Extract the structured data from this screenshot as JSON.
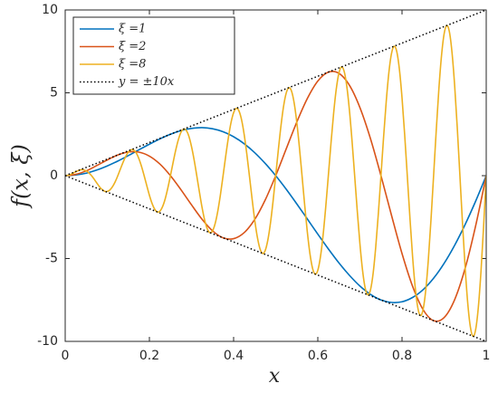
{
  "chart_data": {
    "type": "line",
    "xlabel": "x",
    "ylabel": "f(x, ξ)",
    "xlim": [
      0,
      1
    ],
    "ylim": [
      -10,
      10
    ],
    "xticks": [
      0,
      0.2,
      0.4,
      0.6,
      0.8,
      1
    ],
    "yticks": [
      -10,
      -5,
      0,
      5,
      10
    ],
    "legend": "upper left",
    "series": [
      {
        "name": "ξ =1",
        "color": "#0072bd",
        "style": "solid",
        "x": [
          0,
          0.025,
          0.05,
          0.075,
          0.1,
          0.125,
          0.15,
          0.175,
          0.2,
          0.225,
          0.25,
          0.275,
          0.3,
          0.325,
          0.35,
          0.375,
          0.4,
          0.425,
          0.45,
          0.475,
          0.5,
          0.525,
          0.55,
          0.575,
          0.6,
          0.625,
          0.65,
          0.675,
          0.7,
          0.725,
          0.75,
          0.775,
          0.8,
          0.825,
          0.85,
          0.875,
          0.9,
          0.925,
          0.95,
          0.975,
          1
        ],
        "values": [
          0,
          0.04,
          0.15,
          0.34,
          0.59,
          0.88,
          1.21,
          1.56,
          1.9,
          2.22,
          2.5,
          2.72,
          2.85,
          2.9,
          2.83,
          2.65,
          2.35,
          1.93,
          1.39,
          0.74,
          0,
          -0.82,
          -1.7,
          -2.61,
          -3.53,
          -4.42,
          -5.26,
          -6.01,
          -6.66,
          -7.16,
          -7.5,
          -7.65,
          -7.61,
          -7.35,
          -6.88,
          -6.19,
          -5.29,
          -4.2,
          -2.94,
          -1.53,
          0
        ]
      },
      {
        "name": "ξ =2",
        "color": "#d95319",
        "style": "solid",
        "x": [
          0,
          0.025,
          0.05,
          0.075,
          0.1,
          0.125,
          0.15,
          0.175,
          0.2,
          0.225,
          0.25,
          0.275,
          0.3,
          0.325,
          0.35,
          0.375,
          0.4,
          0.425,
          0.45,
          0.475,
          0.5,
          0.525,
          0.55,
          0.575,
          0.6,
          0.625,
          0.65,
          0.675,
          0.7,
          0.725,
          0.75,
          0.775,
          0.8,
          0.825,
          0.85,
          0.875,
          0.9,
          0.925,
          0.95,
          0.975,
          1
        ],
        "values": [
          0,
          0.08,
          0.29,
          0.61,
          0.95,
          1.25,
          1.43,
          1.42,
          1.18,
          0.7,
          0,
          -0.85,
          -1.76,
          -2.63,
          -3.33,
          -3.75,
          -3.8,
          -3.44,
          -2.65,
          -1.47,
          0,
          1.62,
          3.23,
          4.65,
          5.71,
          6.25,
          6.18,
          5.46,
          4.11,
          2.24,
          0,
          -2.39,
          -4.7,
          -6.67,
          -8.08,
          -8.75,
          -8.56,
          -7.48,
          -5.58,
          -3.01,
          0
        ]
      },
      {
        "name": "ξ =8",
        "color": "#edb120",
        "style": "solid",
        "x": [
          0,
          0.00625,
          0.0125,
          0.01875,
          0.025,
          0.03125,
          0.0375,
          0.04375,
          0.05,
          0.05625,
          0.0625,
          0.06875,
          0.075,
          0.08125,
          0.0875,
          0.09375,
          0.1,
          0.10625,
          0.1125,
          0.11875,
          0.125,
          0.13125,
          0.1375,
          0.14375,
          0.15,
          0.15625,
          0.1625,
          0.16875,
          0.175,
          0.18125,
          0.1875,
          0.19375,
          0.2,
          0.20625,
          0.2125,
          0.21875,
          0.225,
          0.23125,
          0.2375,
          0.24375,
          0.25,
          0.25625,
          0.2625,
          0.26875,
          0.275,
          0.28125,
          0.2875,
          0.29375,
          0.3,
          0.30625,
          0.3125,
          0.31875,
          0.325,
          0.33125,
          0.3375,
          0.34375,
          0.35,
          0.35625,
          0.3625,
          0.36875,
          0.375,
          0.38125,
          0.3875,
          0.39375,
          0.4,
          0.40625,
          0.4125,
          0.41875,
          0.425,
          0.43125,
          0.4375,
          0.44375,
          0.45,
          0.45625,
          0.4625,
          0.46875,
          0.475,
          0.48125,
          0.4875,
          0.49375,
          0.5,
          0.50625,
          0.5125,
          0.51875,
          0.525,
          0.53125,
          0.5375,
          0.54375,
          0.55,
          0.55625,
          0.5625,
          0.56875,
          0.575,
          0.58125,
          0.5875,
          0.59375,
          0.6,
          0.60625,
          0.6125,
          0.61875,
          0.625,
          0.63125,
          0.6375,
          0.64375,
          0.65,
          0.65625,
          0.6625,
          0.66875,
          0.675,
          0.68125,
          0.6875,
          0.69375,
          0.7,
          0.70625,
          0.7125,
          0.71875,
          0.725,
          0.73125,
          0.7375,
          0.74375,
          0.75,
          0.75625,
          0.7625,
          0.76875,
          0.775,
          0.78125,
          0.7875,
          0.79375,
          0.8,
          0.80625,
          0.8125,
          0.81875,
          0.825,
          0.83125,
          0.8375,
          0.84375,
          0.85,
          0.85625,
          0.8625,
          0.86875,
          0.875,
          0.88125,
          0.8875,
          0.89375,
          0.9,
          0.90625,
          0.9125,
          0.91875,
          0.925,
          0.93125,
          0.9375,
          0.94375,
          0.95,
          0.95625,
          0.9625,
          0.96875,
          0.975,
          0.98125,
          0.9875,
          0.99375,
          1
        ],
        "values": [
          0,
          0.02,
          0.07,
          0.15,
          0.24,
          0.31,
          0.36,
          0.35,
          0.29,
          0.17,
          0,
          -0.21,
          -0.44,
          -0.66,
          -0.83,
          -0.94,
          -0.95,
          -0.86,
          -0.66,
          -0.37,
          0,
          0.41,
          0.81,
          1.16,
          1.43,
          1.56,
          1.55,
          1.37,
          1.03,
          0.56,
          0,
          -0.6,
          -1.18,
          -1.67,
          -2.02,
          -2.19,
          -2.14,
          -1.87,
          -1.4,
          -0.75,
          0,
          0.79,
          1.54,
          2.17,
          2.62,
          2.81,
          2.73,
          2.38,
          1.76,
          0.95,
          0,
          -0.98,
          -1.91,
          -2.68,
          -3.21,
          -3.44,
          -3.33,
          -2.88,
          -2.13,
          -1.14,
          0,
          1.18,
          2.28,
          3.19,
          3.8,
          4.06,
          3.92,
          3.39,
          2.5,
          1.33,
          0,
          -1.37,
          -2.65,
          -3.69,
          -4.4,
          -4.69,
          -4.52,
          -3.89,
          -2.87,
          -1.53,
          0,
          1.56,
          3.01,
          4.2,
          4.99,
          5.31,
          5.11,
          4.4,
          3.23,
          1.72,
          0,
          -1.76,
          -3.38,
          -4.7,
          -5.59,
          -5.94,
          -5.71,
          -4.9,
          -3.6,
          -1.91,
          0,
          1.95,
          3.75,
          5.21,
          6.18,
          6.56,
          6.3,
          5.41,
          3.97,
          2.11,
          0,
          -2.14,
          -4.11,
          -5.71,
          -6.78,
          -7.19,
          -6.9,
          -5.92,
          -4.33,
          -2.3,
          0,
          2.34,
          4.48,
          6.22,
          7.37,
          7.81,
          7.49,
          6.42,
          4.7,
          2.49,
          0,
          -2.53,
          -4.85,
          -6.72,
          -7.97,
          -8.44,
          -8.08,
          -6.93,
          -5.07,
          -2.68,
          0,
          2.72,
          5.22,
          7.23,
          8.56,
          9.06,
          8.68,
          7.43,
          5.44,
          2.88,
          0,
          -2.92,
          -5.58,
          -7.74,
          -9.15,
          -9.69,
          -9.27,
          -7.94,
          -5.8,
          -3.07,
          0
        ]
      },
      {
        "name": "y = ±10x",
        "color": "#000000",
        "style": "dotted",
        "x": [
          0,
          1
        ],
        "values": [
          0,
          10
        ]
      },
      {
        "color": "#000000",
        "style": "dotted",
        "x": [
          0,
          1
        ],
        "values": [
          0,
          -10
        ]
      }
    ]
  }
}
